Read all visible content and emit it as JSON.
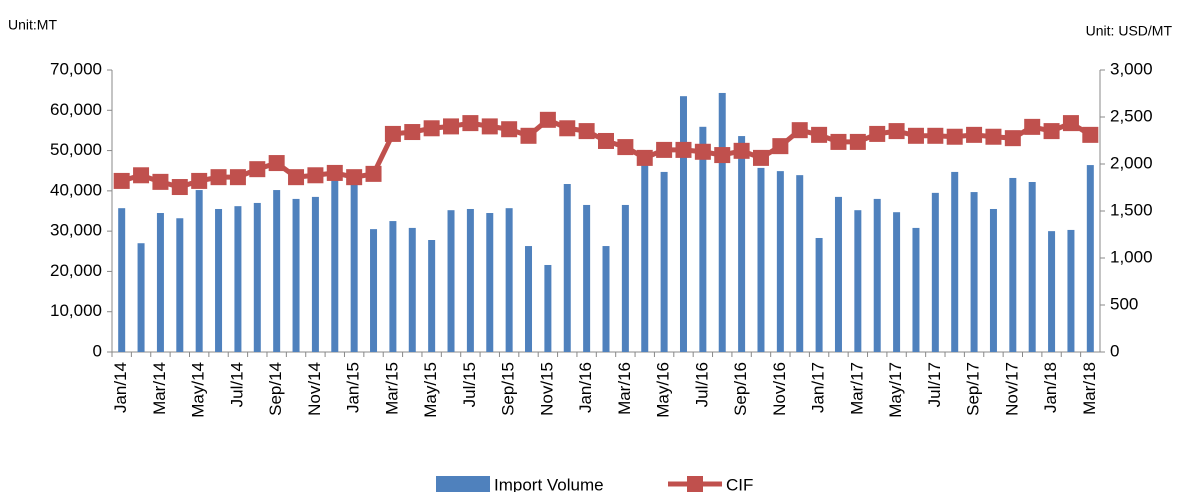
{
  "chart_data": {
    "type": "bar_line",
    "y_label": "Unit:MT",
    "y2_label": "Unit: USD/MT",
    "categories": [
      "Jan/14",
      null,
      "Mar/14",
      null,
      "May/14",
      null,
      "Jul/14",
      null,
      "Sep/14",
      null,
      "Nov/14",
      null,
      "Jan/15",
      null,
      "Mar/15",
      null,
      "May/15",
      null,
      "Jul/15",
      null,
      "Sep/15",
      null,
      "Nov/15",
      null,
      "Jan/16",
      null,
      "Mar/16",
      null,
      "May/16",
      null,
      "Jul/16",
      null,
      "Sep/16",
      null,
      "Nov/16",
      null,
      "Jan/17",
      null,
      "Mar/17",
      null,
      "May/17",
      null,
      "Jul/17",
      null,
      "Sep/17",
      null,
      "Nov/17",
      null,
      "Jan/18",
      null,
      "Mar/18"
    ],
    "series": [
      {
        "name": "Import Volume",
        "type": "bar",
        "color": "#4f81bd",
        "values": [
          35700,
          27000,
          34500,
          33200,
          40200,
          35500,
          36200,
          37000,
          40200,
          38000,
          38500,
          42700,
          41500,
          30500,
          32500,
          30800,
          27800,
          35200,
          35500,
          34500,
          35700,
          26300,
          21600,
          41700,
          36500,
          26300,
          36500,
          46400,
          44700,
          63500,
          55900,
          64300,
          53600,
          45700,
          44900,
          43900,
          28300,
          38500,
          35200,
          38000,
          34700,
          30800,
          39500,
          44700,
          39700,
          35500,
          43200,
          42200,
          30000,
          30300,
          46400
        ]
      },
      {
        "name": "CIF",
        "type": "line",
        "axis": "y2",
        "color": "#c0504d",
        "values": [
          1820,
          1880,
          1810,
          1755,
          1820,
          1860,
          1860,
          1945,
          2010,
          1860,
          1880,
          1905,
          1860,
          1895,
          2320,
          2340,
          2380,
          2400,
          2435,
          2400,
          2370,
          2300,
          2470,
          2380,
          2350,
          2245,
          2180,
          2065,
          2150,
          2150,
          2130,
          2095,
          2140,
          2065,
          2190,
          2360,
          2310,
          2235,
          2235,
          2320,
          2350,
          2300,
          2300,
          2290,
          2310,
          2290,
          2275,
          2395,
          2350,
          2435,
          2310
        ]
      }
    ],
    "ylim": [
      0,
      70000
    ],
    "yticks": [
      0,
      {
        "value": 10000,
        "label": "10,000"
      },
      {
        "value": 20000,
        "label": "20,000"
      },
      {
        "value": 30000,
        "label": "30,000"
      },
      {
        "value": 40000,
        "label": "40,000"
      },
      {
        "value": 50000,
        "label": "50,000"
      },
      {
        "value": 60000,
        "label": "60,000"
      },
      {
        "value": 70000,
        "label": "70,000"
      }
    ],
    "y2lim": [
      0,
      3000
    ],
    "y2ticks": [
      0,
      500,
      {
        "value": 1000,
        "label": "1,000"
      },
      {
        "value": 1500,
        "label": "1,500"
      },
      {
        "value": 2000,
        "label": "2,000"
      },
      {
        "value": 2500,
        "label": "2,500"
      },
      {
        "value": 3000,
        "label": "3,000"
      }
    ]
  }
}
